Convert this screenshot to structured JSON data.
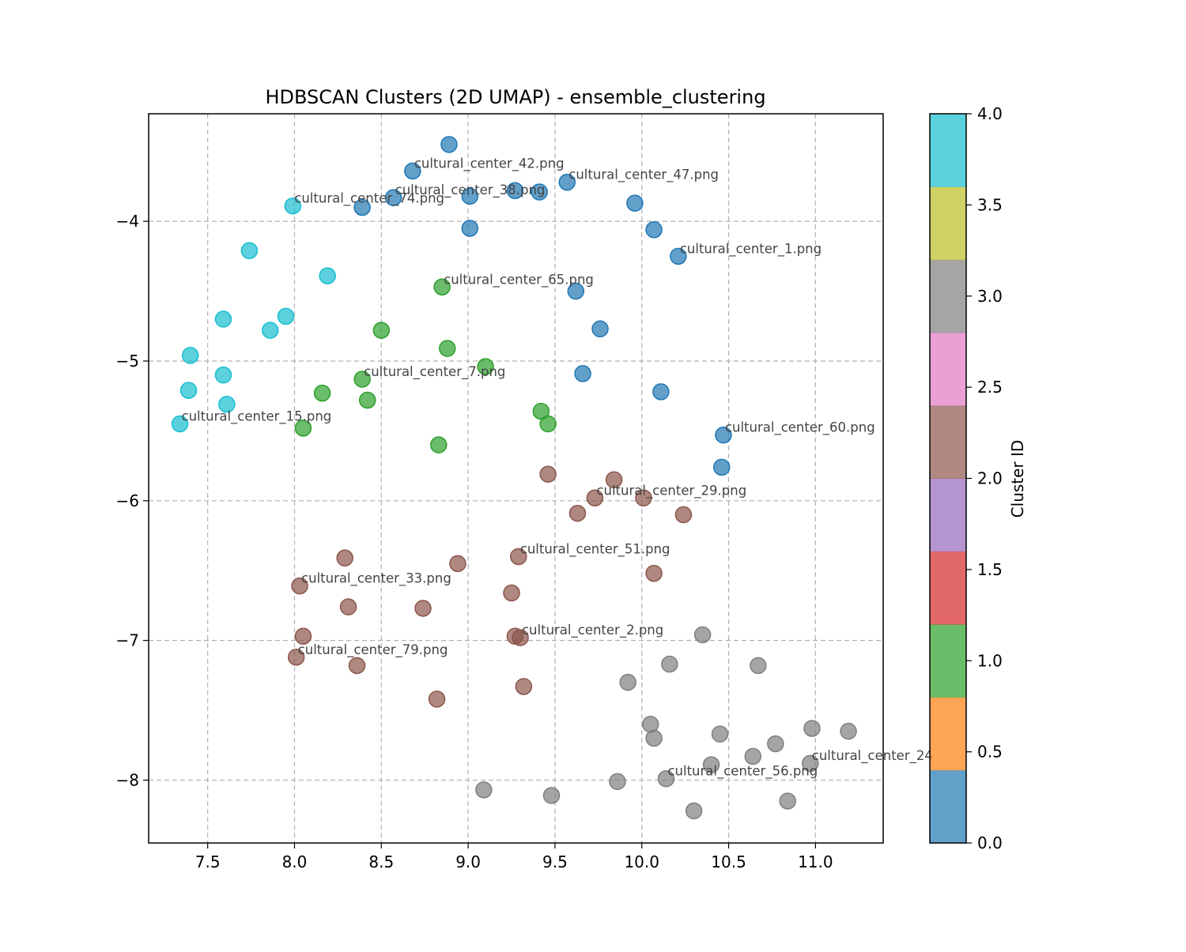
{
  "chart_data": {
    "type": "scatter",
    "title": "HDBSCAN Clusters (2D UMAP) - ensemble_clustering",
    "xlabel": "",
    "ylabel": "",
    "xlim": [
      7.16,
      11.39
    ],
    "ylim": [
      -8.45,
      -3.23
    ],
    "xticks": [
      7.5,
      8.0,
      8.5,
      9.0,
      9.5,
      10.0,
      10.5,
      11.0
    ],
    "xtick_labels": [
      "7.5",
      "8.0",
      "8.5",
      "9.0",
      "9.5",
      "10.0",
      "10.5",
      "11.0"
    ],
    "yticks": [
      -4,
      -5,
      -6,
      -7,
      -8
    ],
    "ytick_labels": [
      "−4",
      "−5",
      "−6",
      "−7",
      "−8"
    ],
    "grid": true,
    "colorbar": {
      "label": "Cluster ID",
      "min": 0.0,
      "max": 4.0,
      "ticks": [
        0.0,
        0.5,
        1.0,
        1.5,
        2.0,
        2.5,
        3.0,
        3.5,
        4.0
      ],
      "tick_labels": [
        "0.0",
        "0.5",
        "1.0",
        "1.5",
        "2.0",
        "2.5",
        "3.0",
        "3.5",
        "4.0"
      ],
      "bands": [
        "#1f77b4",
        "#ff7f0e",
        "#2ca02c",
        "#d62728",
        "#9467bd",
        "#8c564b",
        "#e377c2",
        "#7f7f7f",
        "#bcbd22",
        "#17becf"
      ]
    },
    "cluster_colors": {
      "0": "#1f77b4",
      "1": "#2ca02c",
      "2": "#8c564b",
      "3": "#7f7f7f",
      "4": "#17becf"
    },
    "points": [
      {
        "x": 8.89,
        "y": -3.45,
        "c": 0
      },
      {
        "x": 8.68,
        "y": -3.64,
        "c": 0
      },
      {
        "x": 8.57,
        "y": -3.83,
        "c": 0
      },
      {
        "x": 8.39,
        "y": -3.9,
        "c": 0
      },
      {
        "x": 9.01,
        "y": -3.82,
        "c": 0
      },
      {
        "x": 9.27,
        "y": -3.78,
        "c": 0
      },
      {
        "x": 9.41,
        "y": -3.79,
        "c": 0
      },
      {
        "x": 9.57,
        "y": -3.72,
        "c": 0
      },
      {
        "x": 9.01,
        "y": -4.05,
        "c": 0
      },
      {
        "x": 9.96,
        "y": -3.87,
        "c": 0
      },
      {
        "x": 10.07,
        "y": -4.06,
        "c": 0
      },
      {
        "x": 10.21,
        "y": -4.25,
        "c": 0
      },
      {
        "x": 9.62,
        "y": -4.5,
        "c": 0
      },
      {
        "x": 9.76,
        "y": -4.77,
        "c": 0
      },
      {
        "x": 9.66,
        "y": -5.09,
        "c": 0
      },
      {
        "x": 10.11,
        "y": -5.22,
        "c": 0
      },
      {
        "x": 10.47,
        "y": -5.53,
        "c": 0
      },
      {
        "x": 10.46,
        "y": -5.76,
        "c": 0
      },
      {
        "x": 8.85,
        "y": -4.47,
        "c": 1
      },
      {
        "x": 8.5,
        "y": -4.78,
        "c": 1
      },
      {
        "x": 8.88,
        "y": -4.91,
        "c": 1
      },
      {
        "x": 9.1,
        "y": -5.04,
        "c": 1
      },
      {
        "x": 8.39,
        "y": -5.13,
        "c": 1
      },
      {
        "x": 8.16,
        "y": -5.23,
        "c": 1
      },
      {
        "x": 8.42,
        "y": -5.28,
        "c": 1
      },
      {
        "x": 9.42,
        "y": -5.36,
        "c": 1
      },
      {
        "x": 9.46,
        "y": -5.45,
        "c": 1
      },
      {
        "x": 8.05,
        "y": -5.48,
        "c": 1
      },
      {
        "x": 8.83,
        "y": -5.6,
        "c": 1
      },
      {
        "x": 9.46,
        "y": -5.81,
        "c": 2
      },
      {
        "x": 9.84,
        "y": -5.85,
        "c": 2
      },
      {
        "x": 9.73,
        "y": -5.98,
        "c": 2
      },
      {
        "x": 10.01,
        "y": -5.98,
        "c": 2
      },
      {
        "x": 9.63,
        "y": -6.09,
        "c": 2
      },
      {
        "x": 10.24,
        "y": -6.1,
        "c": 2
      },
      {
        "x": 9.29,
        "y": -6.4,
        "c": 2
      },
      {
        "x": 8.29,
        "y": -6.41,
        "c": 2
      },
      {
        "x": 8.94,
        "y": -6.45,
        "c": 2
      },
      {
        "x": 10.07,
        "y": -6.52,
        "c": 2
      },
      {
        "x": 8.03,
        "y": -6.61,
        "c": 2
      },
      {
        "x": 9.25,
        "y": -6.66,
        "c": 2
      },
      {
        "x": 8.31,
        "y": -6.76,
        "c": 2
      },
      {
        "x": 8.74,
        "y": -6.77,
        "c": 2
      },
      {
        "x": 8.05,
        "y": -6.97,
        "c": 2
      },
      {
        "x": 9.27,
        "y": -6.97,
        "c": 2
      },
      {
        "x": 9.3,
        "y": -6.98,
        "c": 2
      },
      {
        "x": 8.01,
        "y": -7.12,
        "c": 2
      },
      {
        "x": 8.36,
        "y": -7.18,
        "c": 2
      },
      {
        "x": 9.32,
        "y": -7.33,
        "c": 2
      },
      {
        "x": 8.82,
        "y": -7.42,
        "c": 2
      },
      {
        "x": 10.35,
        "y": -6.96,
        "c": 3
      },
      {
        "x": 10.16,
        "y": -7.17,
        "c": 3
      },
      {
        "x": 10.67,
        "y": -7.18,
        "c": 3
      },
      {
        "x": 9.92,
        "y": -7.3,
        "c": 3
      },
      {
        "x": 10.05,
        "y": -7.6,
        "c": 3
      },
      {
        "x": 10.07,
        "y": -7.7,
        "c": 3
      },
      {
        "x": 10.45,
        "y": -7.67,
        "c": 3
      },
      {
        "x": 10.98,
        "y": -7.63,
        "c": 3
      },
      {
        "x": 11.19,
        "y": -7.65,
        "c": 3
      },
      {
        "x": 10.77,
        "y": -7.74,
        "c": 3
      },
      {
        "x": 10.64,
        "y": -7.83,
        "c": 3
      },
      {
        "x": 10.97,
        "y": -7.88,
        "c": 3
      },
      {
        "x": 10.4,
        "y": -7.89,
        "c": 3
      },
      {
        "x": 10.14,
        "y": -7.99,
        "c": 3
      },
      {
        "x": 9.86,
        "y": -8.01,
        "c": 3
      },
      {
        "x": 9.09,
        "y": -8.07,
        "c": 3
      },
      {
        "x": 9.48,
        "y": -8.11,
        "c": 3
      },
      {
        "x": 10.84,
        "y": -8.15,
        "c": 3
      },
      {
        "x": 10.3,
        "y": -8.22,
        "c": 3
      },
      {
        "x": 7.99,
        "y": -3.89,
        "c": 4
      },
      {
        "x": 7.74,
        "y": -4.21,
        "c": 4
      },
      {
        "x": 8.19,
        "y": -4.39,
        "c": 4
      },
      {
        "x": 7.95,
        "y": -4.68,
        "c": 4
      },
      {
        "x": 7.59,
        "y": -4.7,
        "c": 4
      },
      {
        "x": 7.86,
        "y": -4.78,
        "c": 4
      },
      {
        "x": 7.4,
        "y": -4.96,
        "c": 4
      },
      {
        "x": 7.59,
        "y": -5.1,
        "c": 4
      },
      {
        "x": 7.39,
        "y": -5.21,
        "c": 4
      },
      {
        "x": 7.61,
        "y": -5.31,
        "c": 4
      },
      {
        "x": 7.34,
        "y": -5.45,
        "c": 4
      }
    ],
    "annotations": [
      {
        "text": "cultural_center_42.png",
        "x": 8.68,
        "y": -3.64
      },
      {
        "text": "cultural_center_47.png",
        "x": 9.57,
        "y": -3.72
      },
      {
        "text": "cultural_center_38.png",
        "x": 8.57,
        "y": -3.83
      },
      {
        "text": "cultural_center_74.png",
        "x": 7.99,
        "y": -3.89
      },
      {
        "text": "cultural_center_1.png",
        "x": 10.21,
        "y": -4.25
      },
      {
        "text": "cultural_center_65.png",
        "x": 8.85,
        "y": -4.47
      },
      {
        "text": "cultural_center_7.png",
        "x": 8.39,
        "y": -5.13
      },
      {
        "text": "cultural_center_15.png",
        "x": 7.34,
        "y": -5.45
      },
      {
        "text": "cultural_center_60.png",
        "x": 10.47,
        "y": -5.53
      },
      {
        "text": "cultural_center_29.png",
        "x": 9.73,
        "y": -5.98
      },
      {
        "text": "cultural_center_51.png",
        "x": 9.29,
        "y": -6.4
      },
      {
        "text": "cultural_center_33.png",
        "x": 8.03,
        "y": -6.61
      },
      {
        "text": "cultural_center_2.png",
        "x": 9.3,
        "y": -6.98
      },
      {
        "text": "cultural_center_79.png",
        "x": 8.01,
        "y": -7.12
      },
      {
        "text": "cultural_center_24",
        "x": 10.97,
        "y": -7.88
      },
      {
        "text": "cultural_center_56.png",
        "x": 10.14,
        "y": -7.99
      }
    ]
  }
}
